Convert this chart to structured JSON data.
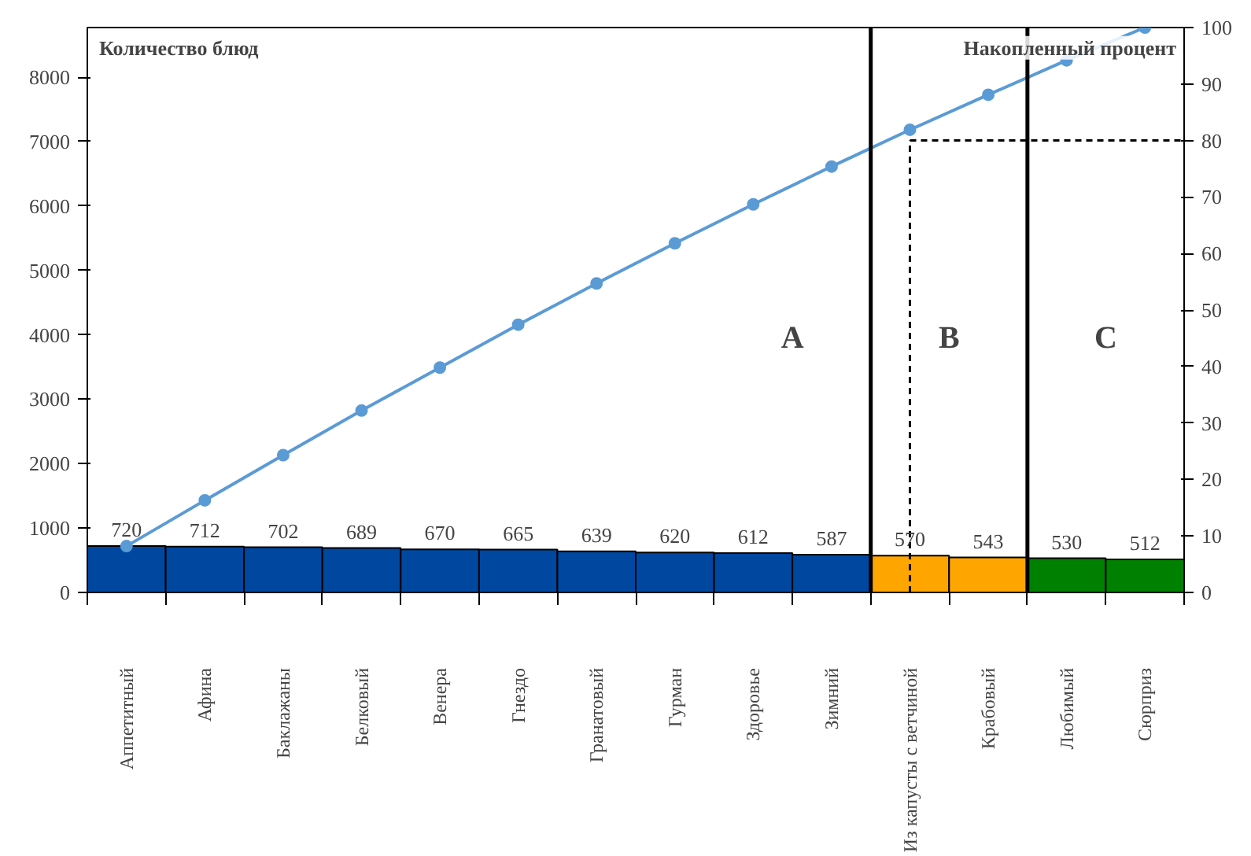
{
  "chart_data": {
    "type": "bar",
    "ylabel": "Количество блюд",
    "y2label": "Накопленный процент",
    "categories": [
      "Аппетитный",
      "Афина",
      "Баклажаны",
      "Белковый",
      "Венера",
      "Гнездо",
      "Гранатовый",
      "Гурман",
      "Здоровье",
      "Зимний",
      "Из капусты с ветчиной",
      "Крабовый",
      "Любимый",
      "Сюрприз"
    ],
    "series": [
      {
        "colors": [
          "#0047a0",
          "#0047a0",
          "#0047a0",
          "#0047a0",
          "#0047a0",
          "#0047a0",
          "#0047a0",
          "#0047a0",
          "#0047a0",
          "#0047a0",
          "#ffa500",
          "#ffa500",
          "#008000",
          "#008000"
        ],
        "values": [
          720,
          712,
          702,
          689,
          670,
          665,
          639,
          620,
          612,
          587,
          570,
          543,
          530,
          512
        ],
        "value_labels": [
          "720",
          "712",
          "702",
          "689",
          "670",
          "665",
          "639",
          "620",
          "612",
          "587",
          "570",
          "543",
          "530",
          "512"
        ]
      },
      {
        "type": "line",
        "axis": "y2",
        "color": "#5b9bd5",
        "values": [
          8.2,
          16.3,
          24.3,
          32.2,
          39.8,
          47.4,
          54.7,
          61.8,
          68.7,
          75.4,
          81.9,
          88.1,
          94.2,
          100
        ]
      }
    ],
    "marker": "circle",
    "ylim": [
      0,
      8771
    ],
    "yticks": [
      0,
      1000,
      2000,
      3000,
      4000,
      5000,
      6000,
      7000,
      8000
    ],
    "y2lim": [
      0,
      100
    ],
    "y2ticks": [
      0,
      10,
      20,
      30,
      40,
      50,
      60,
      70,
      80,
      90,
      100
    ],
    "ref_lines": [
      {
        "axis": "x",
        "value": "Из капусты с ветчиной",
        "color": "#000000",
        "line_style": "dashed"
      },
      {
        "axis": "y2",
        "value": 80,
        "color": "#000000",
        "line_style": "dashed"
      }
    ],
    "annotations": [
      "A",
      "B",
      "C"
    ],
    "grid": false
  }
}
